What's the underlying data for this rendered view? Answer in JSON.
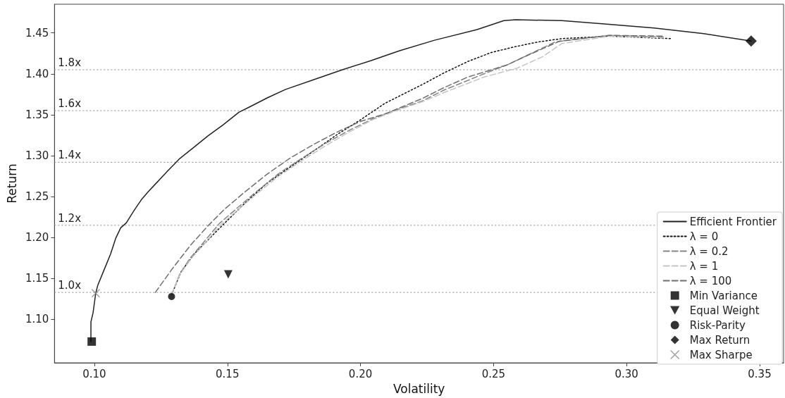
{
  "chart_data": {
    "type": "line",
    "xlabel": "Volatility",
    "ylabel": "Return",
    "xlim": [
      0.085,
      0.359
    ],
    "xticks": [
      {
        "value": 0.1,
        "label": "0.10"
      },
      0.15,
      {
        "value": 0.2,
        "label": "0.20"
      },
      0.25,
      {
        "value": 0.3,
        "label": "0.30"
      },
      0.35
    ],
    "ylim": [
      1.047,
      1.485
    ],
    "yticks": [
      {
        "value": 1.1,
        "label": "1.10"
      },
      1.15,
      {
        "value": 1.2,
        "label": "1.20"
      },
      1.25,
      {
        "value": 1.3,
        "label": "1.30"
      },
      1.35,
      {
        "value": 1.4,
        "label": "1.40"
      },
      1.45
    ],
    "grid": false,
    "legend": "bottom right",
    "ref_lines": [
      {
        "axis": "y",
        "value": 1.405,
        "label": "1.8x",
        "color": "#888888",
        "line_style": "dotted"
      },
      {
        "axis": "y",
        "value": 1.355,
        "label": "1.6x",
        "color": "#888888",
        "line_style": "dotted"
      },
      {
        "axis": "y",
        "value": 1.292,
        "label": "1.4x",
        "color": "#888888",
        "line_style": "dotted"
      },
      {
        "axis": "y",
        "value": 1.215,
        "label": "1.2x",
        "color": "#888888",
        "line_style": "dotted"
      },
      {
        "axis": "y",
        "value": 1.133,
        "label": "1.0x",
        "color": "#888888",
        "line_style": "dotted"
      }
    ],
    "series": [
      {
        "name": "Efficient Frontier",
        "type": "line",
        "color": "#222222",
        "line_style": "solid",
        "marker": "none",
        "x": [
          0.0987,
          0.0987,
          0.0995,
          0.1,
          0.1005,
          0.1013,
          0.1037,
          0.1061,
          0.108,
          0.1099,
          0.112,
          0.1149,
          0.1176,
          0.1202,
          0.1234,
          0.1277,
          0.1319,
          0.1373,
          0.1426,
          0.1485,
          0.1543,
          0.1586,
          0.1652,
          0.1719,
          0.1825,
          0.1932,
          0.2038,
          0.2145,
          0.2278,
          0.2438,
          0.2539,
          0.2584,
          0.2757,
          0.2917,
          0.3103,
          0.329,
          0.3468
        ],
        "values": [
          1.073,
          1.097,
          1.108,
          1.12,
          1.132,
          1.142,
          1.161,
          1.18,
          1.199,
          1.212,
          1.218,
          1.233,
          1.246,
          1.256,
          1.267,
          1.282,
          1.296,
          1.31,
          1.324,
          1.338,
          1.353,
          1.36,
          1.371,
          1.381,
          1.393,
          1.405,
          1.416,
          1.428,
          1.441,
          1.454,
          1.465,
          1.466,
          1.465,
          1.461,
          1.456,
          1.449,
          1.44
        ]
      },
      {
        "name": "λ = 0",
        "type": "line",
        "color": "#111111",
        "line_style": "dotted",
        "marker": "none",
        "x": [
          0.129,
          0.1327,
          0.1381,
          0.1469,
          0.1559,
          0.1647,
          0.1735,
          0.1825,
          0.1913,
          0.2001,
          0.2092,
          0.2233,
          0.2313,
          0.2403,
          0.2491,
          0.2579,
          0.2669,
          0.2757,
          0.2936,
          0.3165
        ],
        "values": [
          1.13,
          1.159,
          1.182,
          1.211,
          1.24,
          1.266,
          1.286,
          1.306,
          1.326,
          1.344,
          1.364,
          1.387,
          1.401,
          1.415,
          1.426,
          1.433,
          1.439,
          1.443,
          1.446,
          1.443
        ]
      },
      {
        "name": "λ = 0.2",
        "type": "line",
        "color": "#858585",
        "line_style": "dashed",
        "marker": "none",
        "x": [
          0.129,
          0.132,
          0.136,
          0.1415,
          0.1469,
          0.154,
          0.1612,
          0.1692,
          0.178,
          0.1868,
          0.1958,
          0.2046,
          0.2134,
          0.2233,
          0.2313,
          0.2464,
          0.2552,
          0.2732,
          0.2936,
          0.3138
        ],
        "values": [
          1.13,
          1.155,
          1.175,
          1.196,
          1.217,
          1.237,
          1.257,
          1.278,
          1.297,
          1.315,
          1.331,
          1.345,
          1.356,
          1.367,
          1.38,
          1.4,
          1.411,
          1.439,
          1.447,
          1.445
        ]
      },
      {
        "name": "λ = 1",
        "type": "line",
        "color": "#c4c4c4",
        "line_style": "dashed",
        "marker": "none",
        "x": [
          0.129,
          0.132,
          0.136,
          0.1415,
          0.1469,
          0.154,
          0.1612,
          0.1692,
          0.178,
          0.1868,
          0.1958,
          0.2046,
          0.2134,
          0.2233,
          0.2313,
          0.2464,
          0.2589,
          0.2685,
          0.2757,
          0.2936,
          0.3138
        ],
        "values": [
          1.13,
          1.154,
          1.173,
          1.193,
          1.214,
          1.234,
          1.254,
          1.275,
          1.294,
          1.312,
          1.329,
          1.344,
          1.355,
          1.366,
          1.377,
          1.396,
          1.407,
          1.421,
          1.437,
          1.446,
          1.444
        ]
      },
      {
        "name": "λ = 100",
        "type": "line",
        "color": "#6e6e6e",
        "line_style": "dashed",
        "marker": "none",
        "x": [
          0.1229,
          0.1293,
          0.1362,
          0.1426,
          0.1487,
          0.1559,
          0.1647,
          0.1735,
          0.1825,
          0.1913,
          0.2001,
          0.2092,
          0.2233,
          0.2313,
          0.2403,
          0.2552,
          0.2624,
          0.2749,
          0.2936,
          0.3138
        ],
        "values": [
          1.133,
          1.162,
          1.191,
          1.214,
          1.234,
          1.254,
          1.277,
          1.297,
          1.314,
          1.329,
          1.342,
          1.351,
          1.37,
          1.383,
          1.396,
          1.411,
          1.422,
          1.44,
          1.447,
          1.446
        ]
      },
      {
        "name": "Min Variance",
        "type": "scatter",
        "color": "#000000",
        "marker": "square",
        "x": [
          0.099
        ],
        "values": [
          1.073
        ]
      },
      {
        "name": "Equal Weight",
        "type": "scatter",
        "color": "#000000",
        "marker": "triangle",
        "x": [
          0.1503
        ],
        "values": [
          1.155
        ]
      },
      {
        "name": "Risk-Parity",
        "type": "scatter",
        "color": "#000000",
        "marker": "circle",
        "x": [
          0.129
        ],
        "values": [
          1.128
        ]
      },
      {
        "name": "Max Return",
        "type": "scatter",
        "color": "#000000",
        "marker": "diamond",
        "x": [
          0.3468
        ],
        "values": [
          1.44
        ]
      },
      {
        "name": "Max Sharpe",
        "type": "scatter",
        "color": "#888888",
        "marker": "cross",
        "x": [
          0.1005
        ],
        "values": [
          1.132
        ]
      }
    ]
  }
}
